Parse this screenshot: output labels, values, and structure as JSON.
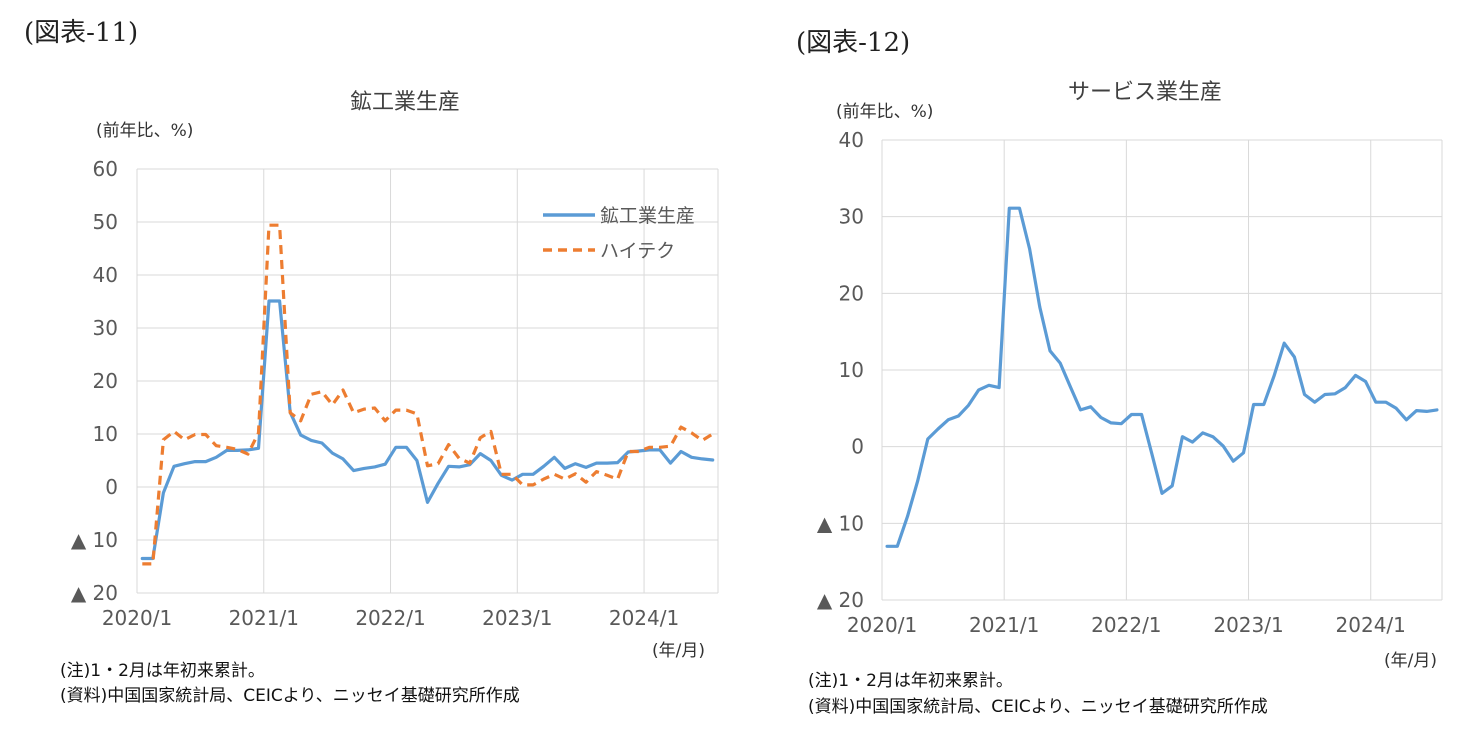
{
  "charts": [
    {
      "figure_label": "(図表-11)",
      "unit_label": "(前年比、%)",
      "x_unit_label": "(年/月)",
      "notes": [
        "(注)1・2月は年初来累計。",
        "(資料)中国国家統計局、CEICより、ニッセイ基礎研究所作成"
      ],
      "colors": {
        "series_0": "#5b9bd5",
        "series_1": "#ed7d31",
        "grid": "#d9d9d9"
      }
    },
    {
      "figure_label": "(図表-12)",
      "unit_label": "(前年比、%)",
      "x_unit_label": "(年/月)",
      "notes": [
        "(注)1・2月は年初来累計。",
        "(資料)中国国家統計局、CEICより、ニッセイ基礎研究所作成"
      ],
      "colors": {
        "series_0": "#5b9bd5",
        "grid": "#d9d9d9"
      }
    }
  ],
  "chart_data": [
    {
      "type": "line",
      "title": "鉱工業生産",
      "xlabel": "",
      "ylabel": "(前年比、%)",
      "ylim": [
        -20,
        60
      ],
      "y_ticks": [
        60,
        50,
        40,
        30,
        20,
        10,
        0,
        -10,
        -20
      ],
      "y_tick_labels": [
        "60",
        "50",
        "40",
        "30",
        "20",
        "10",
        "0",
        "▲ 10",
        "▲ 20"
      ],
      "x_tick_labels": [
        "2020/1",
        "2021/1",
        "2022/1",
        "2023/1",
        "2024/1"
      ],
      "x_start": "2020/1",
      "x_end": "2024/7",
      "grid": true,
      "legend": "top-right",
      "series": [
        {
          "name": "鉱工業生産",
          "style": "solid",
          "values": [
            -13.5,
            -13.5,
            -1.1,
            3.9,
            4.4,
            4.8,
            4.8,
            5.6,
            6.9,
            6.9,
            7.0,
            7.3,
            35.1,
            35.1,
            14.1,
            9.8,
            8.8,
            8.3,
            6.4,
            5.3,
            3.1,
            3.5,
            3.8,
            4.3,
            7.5,
            7.5,
            5.0,
            -2.9,
            0.7,
            3.9,
            3.8,
            4.2,
            6.3,
            5.0,
            2.2,
            1.3,
            2.4,
            2.4,
            3.9,
            5.6,
            3.5,
            4.4,
            3.7,
            4.5,
            4.5,
            4.6,
            6.6,
            6.8,
            7.0,
            7.0,
            4.5,
            6.7,
            5.6,
            5.3,
            5.1
          ]
        },
        {
          "name": "ハイテク",
          "style": "dashed",
          "values": [
            -14.5,
            -14.5,
            8.9,
            10.5,
            8.9,
            9.9,
            9.9,
            7.8,
            7.5,
            7.1,
            6.2,
            10.2,
            49.4,
            49.4,
            14.0,
            12.5,
            17.5,
            18.0,
            15.5,
            18.3,
            14.0,
            14.7,
            14.9,
            12.5,
            14.5,
            14.5,
            13.8,
            4.0,
            4.4,
            8.0,
            5.4,
            4.5,
            9.3,
            10.5,
            2.4,
            2.4,
            0.4,
            0.4,
            1.5,
            2.4,
            1.5,
            2.5,
            0.9,
            2.9,
            2.2,
            1.5,
            6.7,
            6.7,
            7.5,
            7.5,
            7.7,
            11.3,
            10.2,
            8.8,
            10.0
          ]
        }
      ]
    },
    {
      "type": "line",
      "title": "サービス業生産",
      "xlabel": "",
      "ylabel": "(前年比、%)",
      "ylim": [
        -20,
        40
      ],
      "y_ticks": [
        40,
        30,
        20,
        10,
        0,
        -10,
        -20
      ],
      "y_tick_labels": [
        "40",
        "30",
        "20",
        "10",
        "0",
        "▲ 10",
        "▲ 20"
      ],
      "x_tick_labels": [
        "2020/1",
        "2021/1",
        "2022/1",
        "2023/1",
        "2024/1"
      ],
      "x_start": "2020/1",
      "x_end": "2024/7",
      "grid": true,
      "legend": "none",
      "series": [
        {
          "style": "solid",
          "values": [
            -13.0,
            -13.0,
            -9.1,
            -4.5,
            1.0,
            2.3,
            3.5,
            4.0,
            5.4,
            7.4,
            8.0,
            7.7,
            31.1,
            31.1,
            25.8,
            18.2,
            12.5,
            10.9,
            7.8,
            4.8,
            5.2,
            3.8,
            3.1,
            3.0,
            4.2,
            4.2,
            -0.9,
            -6.1,
            -5.1,
            1.3,
            0.6,
            1.8,
            1.3,
            0.1,
            -1.9,
            -0.8,
            5.5,
            5.5,
            9.2,
            13.5,
            11.7,
            6.8,
            5.8,
            6.8,
            6.9,
            7.7,
            9.3,
            8.5,
            5.8,
            5.8,
            5.0,
            3.5,
            4.7,
            4.6,
            4.8
          ]
        }
      ]
    }
  ]
}
